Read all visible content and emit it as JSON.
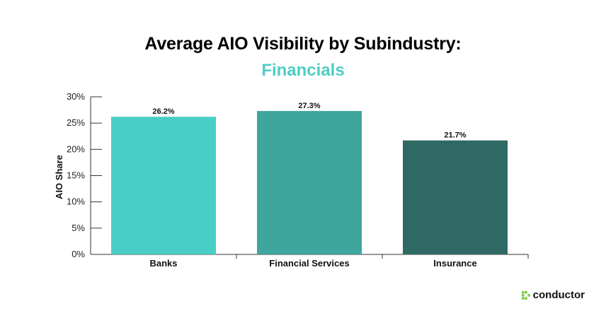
{
  "title": "Average AIO Visibility by Subindustry:",
  "subtitle": "Financials",
  "brand": {
    "name": "conductor",
    "icon": "conductor-logo-icon"
  },
  "colors": {
    "subtitle": "#4ECDC4",
    "logo_accent": "#7AC943"
  },
  "chart_data": {
    "type": "bar",
    "title": "Average AIO Visibility by Subindustry:",
    "subtitle": "Financials",
    "categories": [
      "Banks",
      "Financial Services",
      "Insurance"
    ],
    "values": [
      26.2,
      27.3,
      21.7
    ],
    "data_labels": [
      "26.2%",
      "27.3%",
      "21.7%"
    ],
    "colors": [
      "#48CEC4",
      "#3FA69E",
      "#2E6A63"
    ],
    "xlabel": "",
    "ylabel": "AIO Share",
    "ylim": [
      0,
      30
    ],
    "yticks": [
      0,
      5,
      10,
      15,
      20,
      25,
      30
    ],
    "ytick_labels": [
      "0%",
      "5%",
      "10%",
      "15%",
      "20%",
      "25%",
      "30%"
    ],
    "grid": false,
    "legend": "none"
  }
}
